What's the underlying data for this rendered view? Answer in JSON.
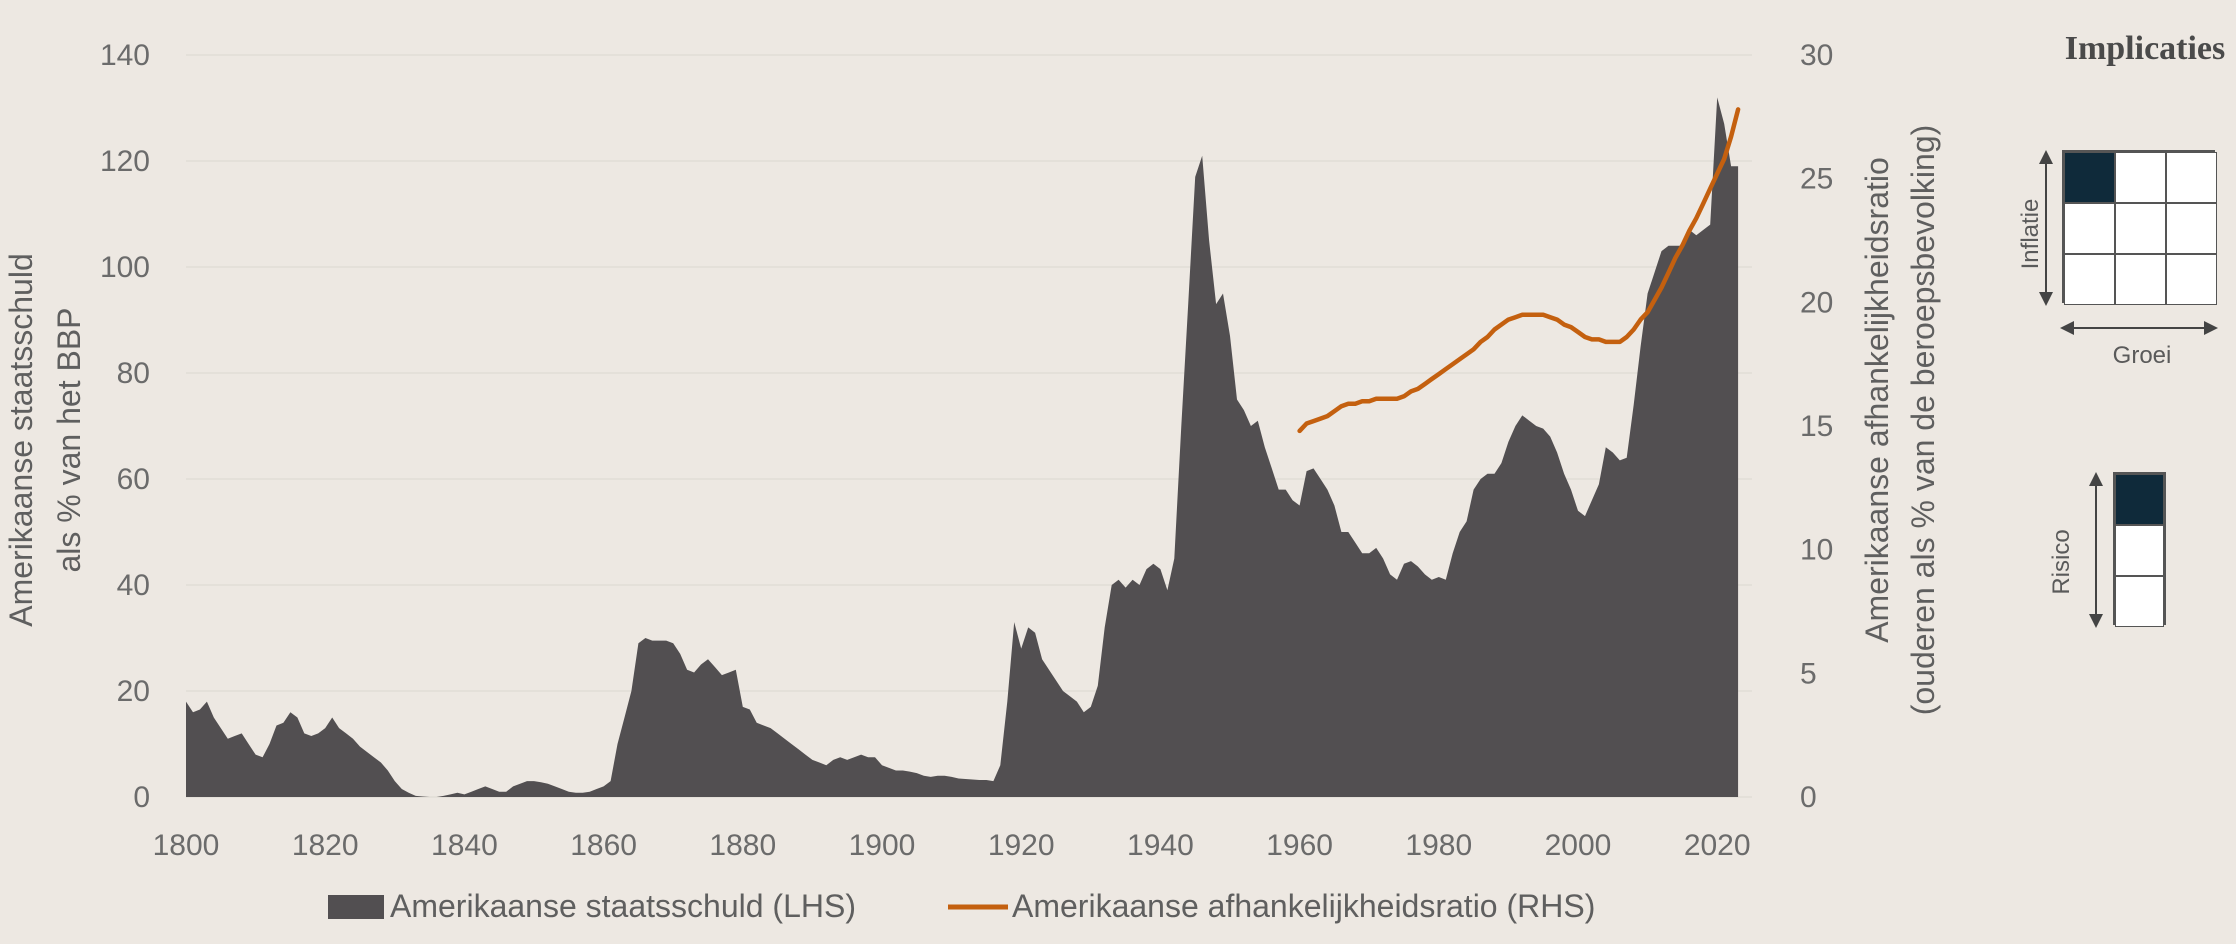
{
  "chart_data": {
    "type": "area",
    "xlim": [
      1800,
      2025
    ],
    "x_ticks": [
      "1800",
      "1820",
      "1840",
      "1860",
      "1880",
      "1900",
      "1920",
      "1940",
      "1960",
      "1980",
      "2000",
      "2020"
    ],
    "y_left": {
      "label_line1": "Amerikaanse staatsschuld",
      "label_line2": "als % van het BBP",
      "lim": [
        0,
        140
      ],
      "ticks": [
        "0",
        "20",
        "40",
        "60",
        "80",
        "100",
        "120",
        "140"
      ]
    },
    "y_right": {
      "label_line1": "Amerikaanse afhankelijkheidsratio",
      "label_line2": "(ouderen als % van de beroepsbevolking)",
      "lim": [
        0,
        30
      ],
      "ticks": [
        "0",
        "5",
        "10",
        "15",
        "20",
        "25",
        "30"
      ]
    },
    "grid": true,
    "legend_position": "bottom",
    "series": [
      {
        "name": "Amerikaanse staatsschuld (LHS)",
        "axis": "left",
        "type": "area",
        "color": "#524f51",
        "points": [
          [
            1800,
            18
          ],
          [
            1801,
            16
          ],
          [
            1802,
            16.5
          ],
          [
            1803,
            18
          ],
          [
            1804,
            15
          ],
          [
            1805,
            13
          ],
          [
            1806,
            11
          ],
          [
            1807,
            11.5
          ],
          [
            1808,
            12
          ],
          [
            1809,
            10
          ],
          [
            1810,
            8
          ],
          [
            1811,
            7.5
          ],
          [
            1812,
            10
          ],
          [
            1813,
            13.5
          ],
          [
            1814,
            14
          ],
          [
            1815,
            16
          ],
          [
            1816,
            15
          ],
          [
            1817,
            12
          ],
          [
            1818,
            11.5
          ],
          [
            1819,
            12
          ],
          [
            1820,
            13
          ],
          [
            1821,
            15
          ],
          [
            1822,
            13
          ],
          [
            1823,
            12
          ],
          [
            1824,
            11
          ],
          [
            1825,
            9.5
          ],
          [
            1826,
            8.5
          ],
          [
            1827,
            7.5
          ],
          [
            1828,
            6.5
          ],
          [
            1829,
            5
          ],
          [
            1830,
            3
          ],
          [
            1831,
            1.5
          ],
          [
            1832,
            0.8
          ],
          [
            1833,
            0.2
          ],
          [
            1834,
            0.1
          ],
          [
            1835,
            0
          ],
          [
            1836,
            0
          ],
          [
            1837,
            0.2
          ],
          [
            1838,
            0.5
          ],
          [
            1839,
            0.8
          ],
          [
            1840,
            0.5
          ],
          [
            1841,
            1
          ],
          [
            1842,
            1.5
          ],
          [
            1843,
            2
          ],
          [
            1844,
            1.5
          ],
          [
            1845,
            1
          ],
          [
            1846,
            1
          ],
          [
            1847,
            2
          ],
          [
            1848,
            2.5
          ],
          [
            1849,
            3
          ],
          [
            1850,
            3
          ],
          [
            1851,
            2.8
          ],
          [
            1852,
            2.5
          ],
          [
            1853,
            2
          ],
          [
            1854,
            1.5
          ],
          [
            1855,
            1
          ],
          [
            1856,
            0.8
          ],
          [
            1857,
            0.8
          ],
          [
            1858,
            1
          ],
          [
            1859,
            1.5
          ],
          [
            1860,
            2
          ],
          [
            1861,
            3
          ],
          [
            1862,
            10
          ],
          [
            1863,
            15
          ],
          [
            1864,
            20
          ],
          [
            1865,
            29
          ],
          [
            1866,
            30
          ],
          [
            1867,
            29.5
          ],
          [
            1868,
            29.5
          ],
          [
            1869,
            29.5
          ],
          [
            1870,
            29
          ],
          [
            1871,
            27
          ],
          [
            1872,
            24
          ],
          [
            1873,
            23.5
          ],
          [
            1874,
            25
          ],
          [
            1875,
            26
          ],
          [
            1876,
            24.5
          ],
          [
            1877,
            23
          ],
          [
            1878,
            23.5
          ],
          [
            1879,
            24
          ],
          [
            1880,
            17
          ],
          [
            1881,
            16.5
          ],
          [
            1882,
            14
          ],
          [
            1883,
            13.5
          ],
          [
            1884,
            13
          ],
          [
            1885,
            12
          ],
          [
            1886,
            11
          ],
          [
            1887,
            10
          ],
          [
            1888,
            9
          ],
          [
            1889,
            8
          ],
          [
            1890,
            7
          ],
          [
            1891,
            6.5
          ],
          [
            1892,
            6
          ],
          [
            1893,
            7
          ],
          [
            1894,
            7.5
          ],
          [
            1895,
            7
          ],
          [
            1896,
            7.5
          ],
          [
            1897,
            8
          ],
          [
            1898,
            7.5
          ],
          [
            1899,
            7.5
          ],
          [
            1900,
            6
          ],
          [
            1901,
            5.5
          ],
          [
            1902,
            5
          ],
          [
            1903,
            5
          ],
          [
            1904,
            4.8
          ],
          [
            1905,
            4.5
          ],
          [
            1906,
            4
          ],
          [
            1907,
            3.8
          ],
          [
            1908,
            4
          ],
          [
            1909,
            4
          ],
          [
            1910,
            3.8
          ],
          [
            1911,
            3.5
          ],
          [
            1912,
            3.4
          ],
          [
            1913,
            3.3
          ],
          [
            1914,
            3.2
          ],
          [
            1915,
            3.2
          ],
          [
            1916,
            3
          ],
          [
            1917,
            6
          ],
          [
            1918,
            18
          ],
          [
            1919,
            33
          ],
          [
            1920,
            28
          ],
          [
            1921,
            32
          ],
          [
            1922,
            31
          ],
          [
            1923,
            26
          ],
          [
            1924,
            24
          ],
          [
            1925,
            22
          ],
          [
            1926,
            20
          ],
          [
            1927,
            19
          ],
          [
            1928,
            18
          ],
          [
            1929,
            16
          ],
          [
            1930,
            17
          ],
          [
            1931,
            21
          ],
          [
            1932,
            32
          ],
          [
            1933,
            40
          ],
          [
            1934,
            41
          ],
          [
            1935,
            39.5
          ],
          [
            1936,
            41
          ],
          [
            1937,
            40
          ],
          [
            1938,
            43
          ],
          [
            1939,
            44
          ],
          [
            1940,
            43
          ],
          [
            1941,
            39
          ],
          [
            1942,
            45
          ],
          [
            1943,
            70
          ],
          [
            1944,
            93
          ],
          [
            1945,
            117
          ],
          [
            1946,
            121
          ],
          [
            1947,
            105
          ],
          [
            1948,
            93
          ],
          [
            1949,
            95
          ],
          [
            1950,
            87
          ],
          [
            1951,
            75
          ],
          [
            1952,
            73
          ],
          [
            1953,
            70
          ],
          [
            1954,
            71
          ],
          [
            1955,
            66
          ],
          [
            1956,
            62
          ],
          [
            1957,
            58
          ],
          [
            1958,
            58
          ],
          [
            1959,
            56
          ],
          [
            1960,
            55
          ],
          [
            1961,
            61.5
          ],
          [
            1962,
            62
          ],
          [
            1963,
            60
          ],
          [
            1964,
            58
          ],
          [
            1965,
            55
          ],
          [
            1966,
            50
          ],
          [
            1967,
            50
          ],
          [
            1968,
            48
          ],
          [
            1969,
            46
          ],
          [
            1970,
            46
          ],
          [
            1971,
            47
          ],
          [
            1972,
            45
          ],
          [
            1973,
            42
          ],
          [
            1974,
            41
          ],
          [
            1975,
            44
          ],
          [
            1976,
            44.5
          ],
          [
            1977,
            43.5
          ],
          [
            1978,
            42
          ],
          [
            1979,
            41
          ],
          [
            1980,
            41.5
          ],
          [
            1981,
            41
          ],
          [
            1982,
            46
          ],
          [
            1983,
            50
          ],
          [
            1984,
            52
          ],
          [
            1985,
            58
          ],
          [
            1986,
            60
          ],
          [
            1987,
            61
          ],
          [
            1988,
            61
          ],
          [
            1989,
            63
          ],
          [
            1990,
            67
          ],
          [
            1991,
            70
          ],
          [
            1992,
            72
          ],
          [
            1993,
            71
          ],
          [
            1994,
            70
          ],
          [
            1995,
            69.5
          ],
          [
            1996,
            68
          ],
          [
            1997,
            65
          ],
          [
            1998,
            61
          ],
          [
            1999,
            58
          ],
          [
            2000,
            54
          ],
          [
            2001,
            53
          ],
          [
            2002,
            56
          ],
          [
            2003,
            59
          ],
          [
            2004,
            66
          ],
          [
            2005,
            65
          ],
          [
            2006,
            63.5
          ],
          [
            2007,
            64
          ],
          [
            2008,
            74
          ],
          [
            2009,
            85
          ],
          [
            2010,
            95
          ],
          [
            2011,
            99
          ],
          [
            2012,
            103
          ],
          [
            2013,
            104
          ],
          [
            2014,
            104
          ],
          [
            2015,
            104
          ],
          [
            2016,
            107
          ],
          [
            2017,
            106
          ],
          [
            2018,
            107
          ],
          [
            2019,
            108
          ],
          [
            2020,
            132
          ],
          [
            2021,
            127
          ],
          [
            2022,
            119
          ],
          [
            2023,
            119
          ]
        ]
      },
      {
        "name": "Amerikaanse afhankelijkheidsratio (RHS)",
        "axis": "right",
        "type": "line",
        "color": "#c4600f",
        "points": [
          [
            1960,
            14.8
          ],
          [
            1961,
            15.1
          ],
          [
            1962,
            15.2
          ],
          [
            1963,
            15.3
          ],
          [
            1964,
            15.4
          ],
          [
            1965,
            15.6
          ],
          [
            1966,
            15.8
          ],
          [
            1967,
            15.9
          ],
          [
            1968,
            15.9
          ],
          [
            1969,
            16.0
          ],
          [
            1970,
            16.0
          ],
          [
            1971,
            16.1
          ],
          [
            1972,
            16.1
          ],
          [
            1973,
            16.1
          ],
          [
            1974,
            16.1
          ],
          [
            1975,
            16.2
          ],
          [
            1976,
            16.4
          ],
          [
            1977,
            16.5
          ],
          [
            1978,
            16.7
          ],
          [
            1979,
            16.9
          ],
          [
            1980,
            17.1
          ],
          [
            1981,
            17.3
          ],
          [
            1982,
            17.5
          ],
          [
            1983,
            17.7
          ],
          [
            1984,
            17.9
          ],
          [
            1985,
            18.1
          ],
          [
            1986,
            18.4
          ],
          [
            1987,
            18.6
          ],
          [
            1988,
            18.9
          ],
          [
            1989,
            19.1
          ],
          [
            1990,
            19.3
          ],
          [
            1991,
            19.4
          ],
          [
            1992,
            19.5
          ],
          [
            1993,
            19.5
          ],
          [
            1994,
            19.5
          ],
          [
            1995,
            19.5
          ],
          [
            1996,
            19.4
          ],
          [
            1997,
            19.3
          ],
          [
            1998,
            19.1
          ],
          [
            1999,
            19.0
          ],
          [
            2000,
            18.8
          ],
          [
            2001,
            18.6
          ],
          [
            2002,
            18.5
          ],
          [
            2003,
            18.5
          ],
          [
            2004,
            18.4
          ],
          [
            2005,
            18.4
          ],
          [
            2006,
            18.4
          ],
          [
            2007,
            18.6
          ],
          [
            2008,
            18.9
          ],
          [
            2009,
            19.3
          ],
          [
            2010,
            19.6
          ],
          [
            2011,
            20.1
          ],
          [
            2012,
            20.6
          ],
          [
            2013,
            21.2
          ],
          [
            2014,
            21.8
          ],
          [
            2015,
            22.3
          ],
          [
            2016,
            22.9
          ],
          [
            2017,
            23.4
          ],
          [
            2018,
            24.0
          ],
          [
            2019,
            24.6
          ],
          [
            2020,
            25.2
          ],
          [
            2021,
            25.8
          ],
          [
            2022,
            26.7
          ],
          [
            2023,
            27.8
          ]
        ]
      }
    ]
  },
  "implications": {
    "title": "Implicaties",
    "inflation_label": "Inflatie",
    "growth_label": "Groei",
    "risk_label": "Risico",
    "grid_color": "#0f2a3a",
    "inflation_growth_active_cell": "top-left",
    "risk_active_cell": "top"
  }
}
